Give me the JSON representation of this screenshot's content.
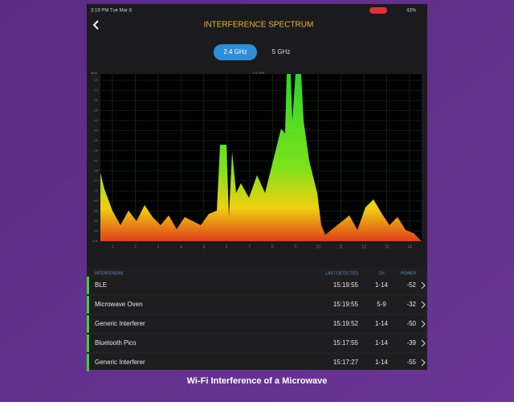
{
  "status_bar": {
    "time": "3:19 PM  Tue Mar 8",
    "battery": "43%"
  },
  "header": {
    "title": "INTERFERENCE SPECTRUM"
  },
  "tabs": [
    "2.4 GHz",
    "5 GHz"
  ],
  "spectrum": {
    "band_label": "2.4 GHz",
    "unit": "dBm",
    "yticks": [
      -20,
      -25,
      -30,
      -35,
      -40,
      -45,
      -50,
      -55,
      -60,
      -65,
      -70,
      -75,
      -80,
      -85,
      -90,
      -95,
      -100
    ],
    "xticks": [
      1,
      2,
      3,
      4,
      5,
      6,
      7,
      8,
      9,
      10,
      11,
      12,
      13,
      14
    ]
  },
  "table": {
    "headers": [
      "INTERFERERS",
      "LAST DETECTED",
      "CH",
      "POWER"
    ],
    "rows": [
      [
        "BLE",
        "15:19:55",
        "1-14",
        "-52"
      ],
      [
        "Microwave Oven",
        "15:19:55",
        "5-9",
        "-32"
      ],
      [
        "Generic Interferer",
        "15:19:52",
        "1-14",
        "-50"
      ],
      [
        "Bluetooth Pico",
        "15:17:55",
        "1-14",
        "-39"
      ],
      [
        "Generic Interferer",
        "15:17:27",
        "1-14",
        "-55"
      ]
    ]
  },
  "caption": "Wi-Fi Interference of a Microwave"
}
